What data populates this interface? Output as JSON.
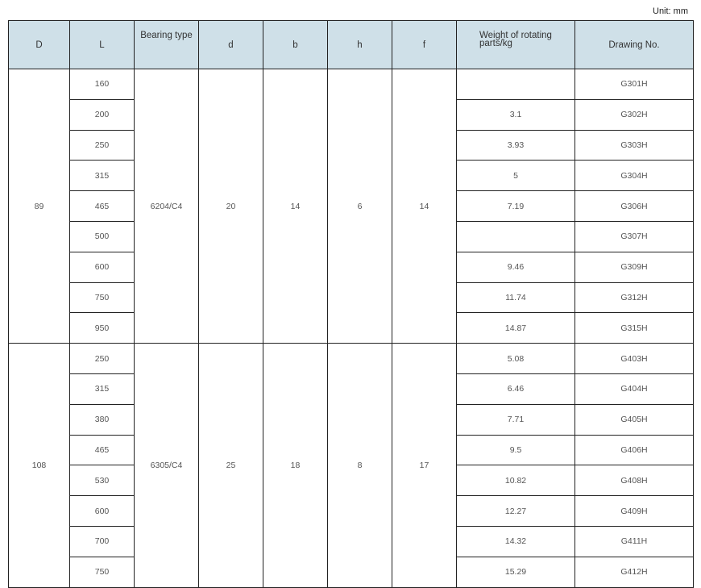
{
  "unit": "Unit: mm",
  "headers": [
    "D",
    "L",
    "Bearing type",
    "d",
    "b",
    "h",
    "f",
    "Weight of rotating parts/kg",
    "Drawing No."
  ],
  "groups": [
    {
      "D": "89",
      "bearing_type": "6204/C4",
      "d": "20",
      "b": "14",
      "h": "6",
      "f": "14",
      "rows": [
        {
          "L": "160",
          "weight": "",
          "drawing": "G301H"
        },
        {
          "L": "200",
          "weight": "3.1",
          "drawing": "G302H"
        },
        {
          "L": "250",
          "weight": "3.93",
          "drawing": "G303H"
        },
        {
          "L": "315",
          "weight": "5",
          "drawing": "G304H"
        },
        {
          "L": "465",
          "weight": "7.19",
          "drawing": "G306H"
        },
        {
          "L": "500",
          "weight": "",
          "drawing": "G307H"
        },
        {
          "L": "600",
          "weight": "9.46",
          "drawing": "G309H"
        },
        {
          "L": "750",
          "weight": "11.74",
          "drawing": "G312H"
        },
        {
          "L": "950",
          "weight": "14.87",
          "drawing": "G315H"
        }
      ]
    },
    {
      "D": "108",
      "bearing_type": "6305/C4",
      "d": "25",
      "b": "18",
      "h": "8",
      "f": "17",
      "rows": [
        {
          "L": "250",
          "weight": "5.08",
          "drawing": "G403H"
        },
        {
          "L": "315",
          "weight": "6.46",
          "drawing": "G404H"
        },
        {
          "L": "380",
          "weight": "7.71",
          "drawing": "G405H"
        },
        {
          "L": "465",
          "weight": "9.5",
          "drawing": "G406H"
        },
        {
          "L": "530",
          "weight": "10.82",
          "drawing": "G408H"
        },
        {
          "L": "600",
          "weight": "12.27",
          "drawing": "G409H"
        },
        {
          "L": "700",
          "weight": "14.32",
          "drawing": "G411H"
        },
        {
          "L": "750",
          "weight": "15.29",
          "drawing": "G412H"
        }
      ]
    }
  ]
}
